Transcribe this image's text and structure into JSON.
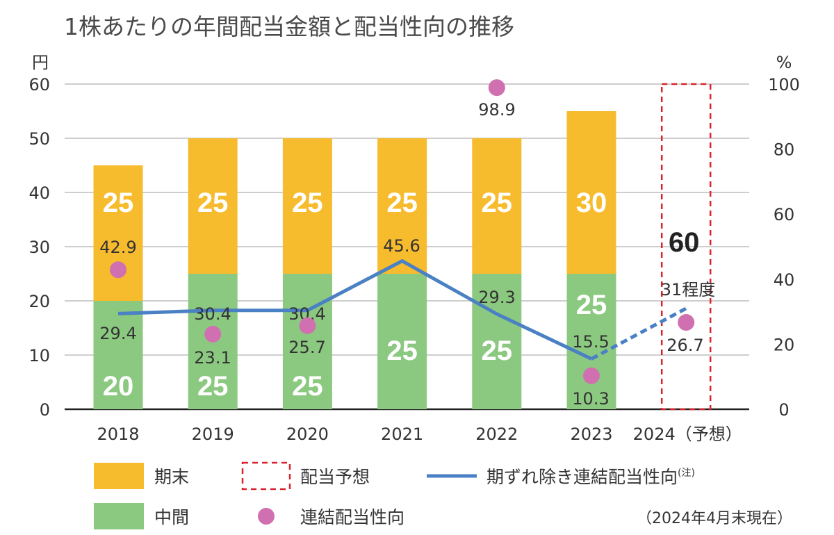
{
  "colors": {
    "final": "#F7BB2E",
    "interim": "#8CC980",
    "line": "#4A80C4",
    "dot": "#D070B0",
    "forecast_box": "#D9232E",
    "grid": "#BDBDBD",
    "axis": "#222222"
  },
  "chart_data": {
    "type": "bar",
    "title": "1株あたりの年間配当金額と配当性向の推移",
    "categories": [
      "2018",
      "2019",
      "2020",
      "2021",
      "2022",
      "2023",
      "2024（予想）"
    ],
    "y_left": {
      "unit": "円",
      "ylim": [
        0,
        60
      ],
      "ticks": [
        "0",
        "10",
        "20",
        "30",
        "40",
        "50",
        "60"
      ]
    },
    "y_right": {
      "unit": "%",
      "ylim": [
        0,
        100
      ],
      "ticks": [
        "0",
        "20",
        "40",
        "60",
        "80",
        "100"
      ]
    },
    "series": [
      {
        "name": "中間",
        "values": [
          20,
          25,
          25,
          25,
          25,
          25,
          null
        ],
        "labels": [
          "20",
          "25",
          "25",
          "25",
          "25",
          "25",
          ""
        ]
      },
      {
        "name": "期末",
        "values": [
          25,
          25,
          25,
          25,
          25,
          30,
          null
        ],
        "labels": [
          "25",
          "25",
          "25",
          "25",
          "25",
          "30",
          ""
        ]
      }
    ],
    "forecast": {
      "category": "2024（予想）",
      "total": 60,
      "total_label": "60"
    },
    "payout_adjusted": {
      "name": "期ずれ除き連結配当性向",
      "values": [
        29.4,
        30.4,
        30.4,
        45.6,
        29.3,
        15.5,
        31
      ],
      "labels": [
        "29.4",
        "30.4",
        "30.4",
        "45.6",
        "29.3",
        "15.5",
        "31程度"
      ]
    },
    "payout_consolidated": {
      "name": "連結配当性向",
      "values": [
        42.9,
        23.1,
        25.7,
        null,
        98.9,
        10.3,
        26.7
      ],
      "labels": [
        "42.9",
        "23.1",
        "25.7",
        "",
        "98.9",
        "10.3",
        "26.7"
      ]
    },
    "legend": {
      "final": "期末",
      "forecast": "配当予想",
      "line": "期ずれ除き連結配当性向",
      "line_note": "(注)",
      "interim": "中間",
      "dot": "連結配当性向"
    },
    "note": "（2024年4月末現在）"
  }
}
